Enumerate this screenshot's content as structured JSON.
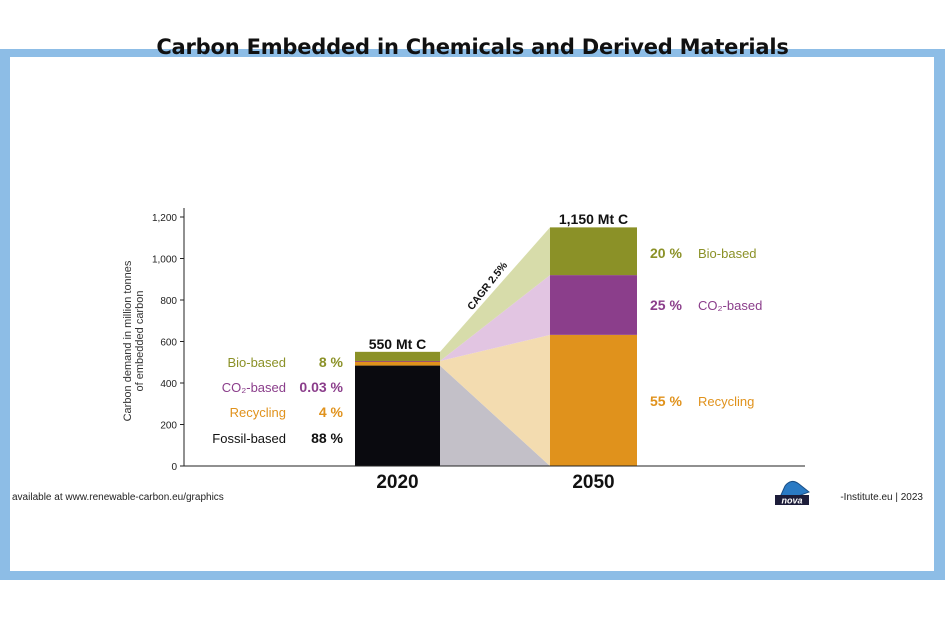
{
  "title": "Carbon Embedded in Chemicals and Derived Materials",
  "footer": {
    "source": "available at www.renewable-carbon.eu/graphics",
    "copyright_symbol": "©",
    "logo_text": "nova",
    "credit": "-Institute.eu | 2023"
  },
  "colors": {
    "bio": "#8b9127",
    "co2": "#8b3e8b",
    "recycling": "#e0921c",
    "fossil": "#0a0a0f",
    "frame": "#8dbde6"
  },
  "chart_data": {
    "type": "bar",
    "title": "Carbon Embedded in Chemicals and Derived Materials",
    "ylabel": [
      "Carbon demand in million tonnes",
      "of embedded carbon"
    ],
    "ylim": [
      0,
      1200
    ],
    "yticks": [
      "0",
      "200",
      "400",
      "600",
      "800",
      "1,000",
      "1,200"
    ],
    "ytick_values": [
      0,
      200,
      400,
      600,
      800,
      1000,
      1200
    ],
    "categories": [
      "2020",
      "2050"
    ],
    "totals": [
      550,
      1150
    ],
    "total_labels": [
      "550 Mt C",
      "1,150 Mt C"
    ],
    "series": [
      {
        "name": "Fossil-based",
        "color": "#0a0a0f",
        "values": [
          484,
          0
        ],
        "pct_labels": [
          "88 %",
          ""
        ]
      },
      {
        "name": "Recycling",
        "color": "#e0921c",
        "values": [
          22,
          632
        ],
        "pct_labels": [
          "4 %",
          "55 %"
        ]
      },
      {
        "name": "CO₂-based",
        "color": "#8b3e8b",
        "values": [
          0.2,
          288
        ],
        "pct_labels": [
          "0.03 %",
          "25 %"
        ]
      },
      {
        "name": "Bio-based",
        "color": "#8b9127",
        "values": [
          44,
          230
        ],
        "pct_labels": [
          "8 %",
          "20 %"
        ]
      }
    ],
    "annotation": "CAGR 2.5%",
    "grid": false
  }
}
